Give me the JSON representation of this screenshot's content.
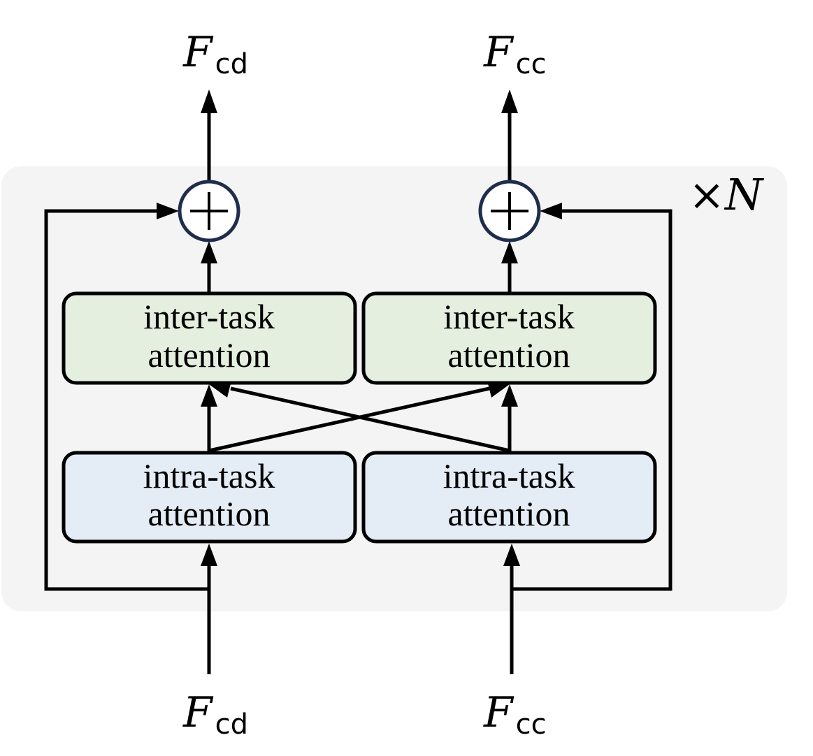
{
  "colors": {
    "background_panel": "#f4f4f4",
    "inter_box_fill": "#e4efe0",
    "intra_box_fill": "#e4ecf6",
    "circle_stroke": "#1f2d4d",
    "line": "#000000"
  },
  "outputs": {
    "left": {
      "main": "F",
      "sub": "cd"
    },
    "right": {
      "main": "F",
      "sub": "cc"
    }
  },
  "inputs": {
    "left": {
      "main": "F",
      "sub": "cd"
    },
    "right": {
      "main": "F",
      "sub": "cc"
    }
  },
  "repeat_label": {
    "times": "×",
    "n": "N"
  },
  "blocks": {
    "inter_left": {
      "line1": "inter-task",
      "line2": "attention"
    },
    "inter_right": {
      "line1": "inter-task",
      "line2": "attention"
    },
    "intra_left": {
      "line1": "intra-task",
      "line2": "attention"
    },
    "intra_right": {
      "line1": "intra-task",
      "line2": "attention"
    }
  },
  "adders": {
    "symbol": "add-circle"
  }
}
